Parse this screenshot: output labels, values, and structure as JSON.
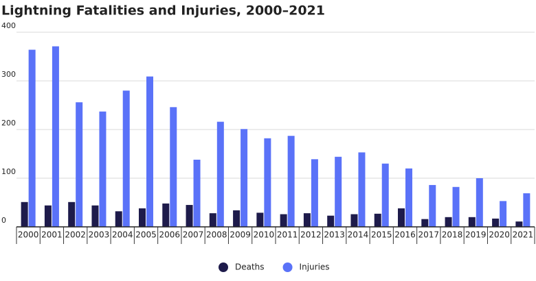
{
  "chart_data": {
    "type": "bar",
    "title": "Lightning Fatalities and Injuries, 2000–2021",
    "categories": [
      "2000",
      "2001",
      "2002",
      "2003",
      "2004",
      "2005",
      "2006",
      "2007",
      "2008",
      "2009",
      "2010",
      "2011",
      "2012",
      "2013",
      "2014",
      "2015",
      "2016",
      "2017",
      "2018",
      "2019",
      "2020",
      "2021"
    ],
    "series": [
      {
        "name": "Deaths",
        "color": "#1e1b4b",
        "values": [
          51,
          44,
          51,
          44,
          32,
          38,
          48,
          45,
          28,
          34,
          29,
          26,
          28,
          23,
          26,
          27,
          38,
          16,
          20,
          20,
          17,
          11
        ]
      },
      {
        "name": "Injuries",
        "color": "#5a72f8",
        "values": [
          364,
          371,
          256,
          237,
          280,
          309,
          246,
          138,
          216,
          201,
          182,
          187,
          139,
          144,
          153,
          130,
          120,
          86,
          82,
          100,
          53,
          69
        ]
      }
    ],
    "ylim": [
      0,
      400
    ],
    "yticks": [
      0,
      100,
      200,
      300,
      400
    ],
    "grid": true,
    "legend": "bottom"
  }
}
